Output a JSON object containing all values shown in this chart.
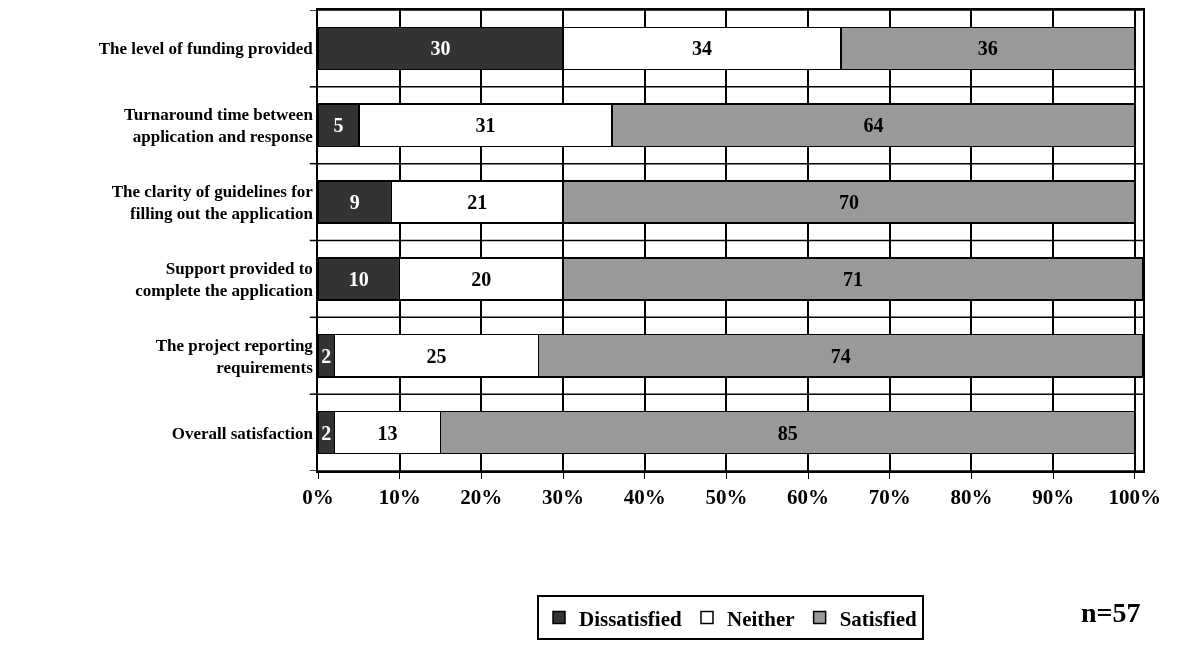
{
  "chart_data": {
    "type": "bar",
    "orientation": "horizontal",
    "stacked": true,
    "data_labels": true,
    "categories": [
      "The level of funding provided",
      "Turnaround time between application and response",
      "The clarity of guidelines for filling out the application",
      "Support provided to complete the application",
      "The project reporting requirements",
      "Overall satisfaction"
    ],
    "series": [
      {
        "name": "Dissatisfied",
        "color": "#333333",
        "values": [
          30,
          5,
          9,
          10,
          2,
          2
        ]
      },
      {
        "name": "Neither",
        "color": "#ffffff",
        "values": [
          34,
          31,
          21,
          20,
          25,
          13
        ]
      },
      {
        "name": "Satisfied",
        "color": "#999999",
        "values": [
          36,
          64,
          70,
          71,
          74,
          85
        ]
      }
    ],
    "xlim": [
      0,
      101
    ],
    "xticks": [
      {
        "value": 0,
        "label": "0%"
      },
      {
        "value": 10,
        "label": "10%"
      },
      {
        "value": 20,
        "label": "20%"
      },
      {
        "value": 30,
        "label": "30%"
      },
      {
        "value": 40,
        "label": "40%"
      },
      {
        "value": 50,
        "label": "50%"
      },
      {
        "value": 60,
        "label": "60%"
      },
      {
        "value": 70,
        "label": "70%"
      },
      {
        "value": 80,
        "label": "80%"
      },
      {
        "value": 90,
        "label": "90%"
      },
      {
        "value": 100,
        "label": "100%"
      }
    ],
    "grid": true,
    "legend": "bottom",
    "annotations": [
      "n=57"
    ]
  }
}
